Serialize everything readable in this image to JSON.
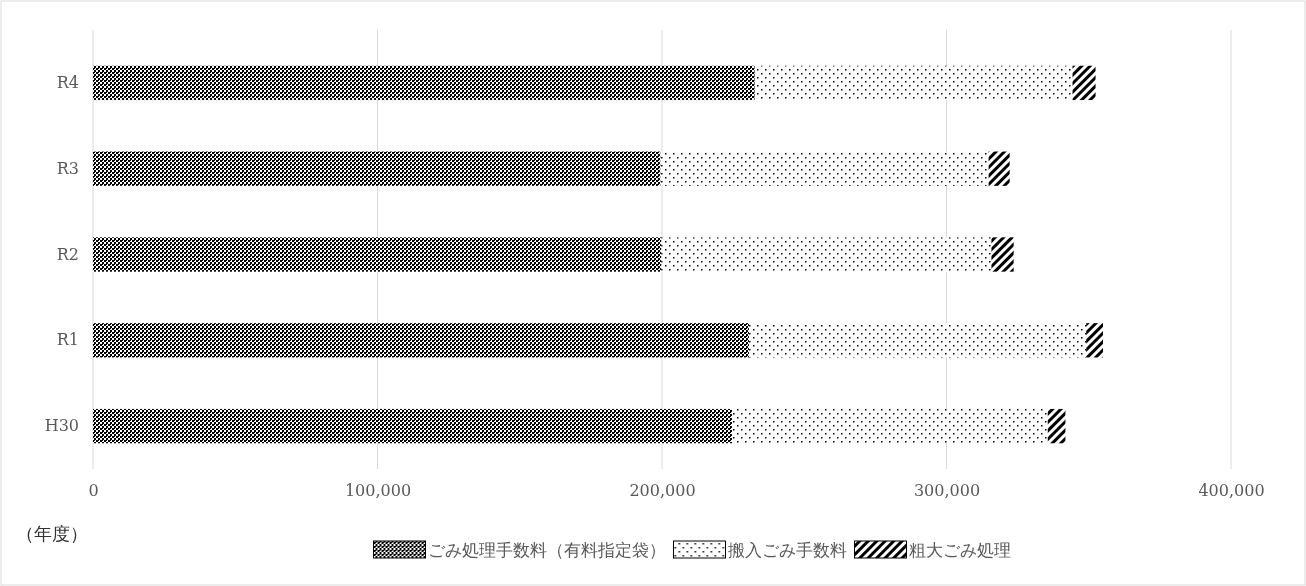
{
  "chart_data": {
    "type": "bar",
    "orientation": "horizontal",
    "stacked": true,
    "categories": [
      "R4",
      "R3",
      "R2",
      "R1",
      "H30"
    ],
    "series": [
      {
        "name": "ごみ処理手数料（有料指定袋）",
        "color": "#000000",
        "values": [
          232600,
          199500,
          199800,
          230600,
          224600
        ]
      },
      {
        "name": "搬入ごみ手数料",
        "color": "#000000",
        "values": [
          111700,
          115300,
          116000,
          118500,
          111000
        ]
      },
      {
        "name": "粗大ごみ処理",
        "color": "#000000",
        "values": [
          8100,
          7400,
          7800,
          5900,
          6200
        ]
      }
    ],
    "xlim": [
      0,
      400000
    ],
    "xticks": [
      {
        "value": 0,
        "label": "0"
      },
      {
        "value": 100000,
        "label": "100,000"
      },
      {
        "value": 200000,
        "label": "200,000"
      },
      {
        "value": 300000,
        "label": "300,000"
      },
      {
        "value": 400000,
        "label": "400,000"
      }
    ],
    "ylabel": "（年度）",
    "grid": "x",
    "legend": "bottom"
  }
}
